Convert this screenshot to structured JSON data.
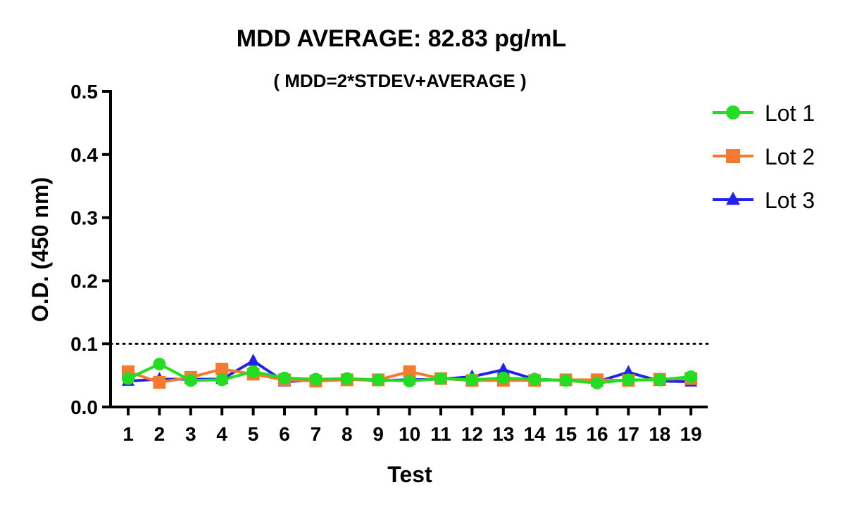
{
  "chart_data": {
    "type": "line",
    "title": "MDD AVERAGE:  82.83 pg/mL",
    "subtitle": "( MDD=2*STDEV+AVERAGE )",
    "xlabel": "Test",
    "ylabel": "O.D. (450 nm)",
    "ylim": [
      0,
      0.5
    ],
    "yticks": [
      "0.0",
      "0.1",
      "0.2",
      "0.3",
      "0.4",
      "0.5"
    ],
    "categories": [
      "1",
      "2",
      "3",
      "4",
      "5",
      "6",
      "7",
      "8",
      "9",
      "10",
      "11",
      "12",
      "13",
      "14",
      "15",
      "16",
      "17",
      "18",
      "19"
    ],
    "reference_line": {
      "y": 0.1,
      "style": "dotted"
    },
    "legend_position": "right",
    "grid": false,
    "series": [
      {
        "name": "Lot 1",
        "color": "#22dd22",
        "marker": "circle",
        "values": [
          0.045,
          0.068,
          0.042,
          0.043,
          0.056,
          0.046,
          0.044,
          0.045,
          0.043,
          0.041,
          0.045,
          0.043,
          0.046,
          0.044,
          0.042,
          0.038,
          0.043,
          0.043,
          0.048
        ]
      },
      {
        "name": "Lot 2",
        "color": "#f47a30",
        "marker": "square",
        "values": [
          0.056,
          0.039,
          0.047,
          0.06,
          0.052,
          0.043,
          0.041,
          0.043,
          0.043,
          0.056,
          0.045,
          0.042,
          0.042,
          0.042,
          0.043,
          0.043,
          0.042,
          0.044,
          0.045
        ]
      },
      {
        "name": "Lot 3",
        "color": "#2222ee",
        "marker": "triangle",
        "values": [
          0.041,
          0.044,
          0.044,
          0.044,
          0.073,
          0.04,
          0.043,
          0.044,
          0.042,
          0.043,
          0.044,
          0.048,
          0.059,
          0.044,
          0.042,
          0.04,
          0.055,
          0.041,
          0.04
        ]
      }
    ]
  }
}
